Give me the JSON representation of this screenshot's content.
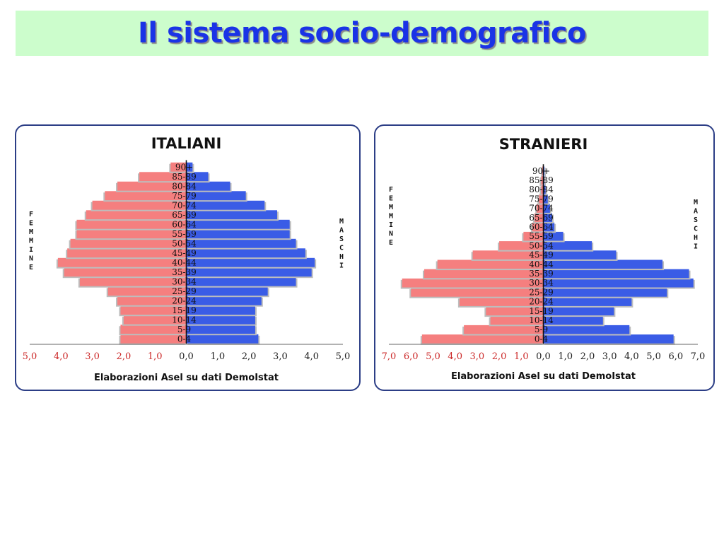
{
  "page": {
    "title": "Il sistema socio-demografico"
  },
  "colors": {
    "title": "#1a33e6",
    "title_band": "#ccfdcc",
    "femmine": "#f57f7f",
    "maschi": "#3a5ce6",
    "panel_border": "#2c3e86",
    "female_tick": "#cc2a2a"
  },
  "chart_data": [
    {
      "type": "bar",
      "title": "ITALIANI",
      "xlabel": "Elaborazioni Asel su dati DemoIstat",
      "left_label": "FEMMINE",
      "right_label": "MASCHI",
      "categories": [
        "0-4",
        "5-9",
        "10-14",
        "15-19",
        "20-24",
        "25-29",
        "30-34",
        "35-39",
        "40-44",
        "45-49",
        "50-54",
        "55-59",
        "60-64",
        "65-69",
        "70-74",
        "75-79",
        "80-84",
        "85-89",
        "90+"
      ],
      "series": [
        {
          "name": "FEMMINE",
          "values": [
            2.1,
            2.1,
            2.0,
            2.1,
            2.2,
            2.5,
            3.4,
            3.9,
            4.1,
            3.8,
            3.7,
            3.5,
            3.5,
            3.2,
            3.0,
            2.6,
            2.2,
            1.5,
            0.5
          ]
        },
        {
          "name": "MASCHI",
          "values": [
            2.3,
            2.2,
            2.2,
            2.2,
            2.4,
            2.6,
            3.5,
            4.0,
            4.1,
            3.8,
            3.5,
            3.3,
            3.3,
            2.9,
            2.5,
            1.9,
            1.4,
            0.7,
            0.2
          ]
        }
      ],
      "xlim": [
        -5,
        5
      ],
      "female_ticks": [
        "5,0",
        "4,0",
        "3,0",
        "2,0",
        "1,0"
      ],
      "male_ticks": [
        "0,0",
        "1,0",
        "2,0",
        "3,0",
        "4,0",
        "5,0"
      ]
    },
    {
      "type": "bar",
      "title": "STRANIERI",
      "xlabel": "Elaborazioni Asel su dati DemoIstat",
      "left_label": "FEMMINE",
      "right_label": "MASCHI",
      "categories": [
        "0-4",
        "5-9",
        "10-14",
        "15-19",
        "20-24",
        "25-29",
        "30-34",
        "35-39",
        "40-44",
        "45-49",
        "50-54",
        "55-59",
        "60-64",
        "65-69",
        "70-74",
        "75-79",
        "80-84",
        "85-89",
        "90+"
      ],
      "series": [
        {
          "name": "FEMMINE",
          "values": [
            5.5,
            3.6,
            2.4,
            2.6,
            3.8,
            6.0,
            6.4,
            5.4,
            4.8,
            3.2,
            2.0,
            0.9,
            0.5,
            0.4,
            0.3,
            0.2,
            0.1,
            0.1,
            0.05
          ]
        },
        {
          "name": "MASCHI",
          "values": [
            5.9,
            3.9,
            2.7,
            3.2,
            4.0,
            5.6,
            6.8,
            6.6,
            5.4,
            3.3,
            2.2,
            0.9,
            0.5,
            0.4,
            0.3,
            0.2,
            0.1,
            0.05,
            0.05
          ]
        }
      ],
      "xlim": [
        -7,
        7
      ],
      "female_ticks": [
        "7,0",
        "6,0",
        "5,0",
        "4,0",
        "3,0",
        "2,0",
        "1,0"
      ],
      "male_ticks": [
        "0,0",
        "1,0",
        "2,0",
        "3,0",
        "4,0",
        "5,0",
        "6,0",
        "7,0"
      ]
    }
  ]
}
